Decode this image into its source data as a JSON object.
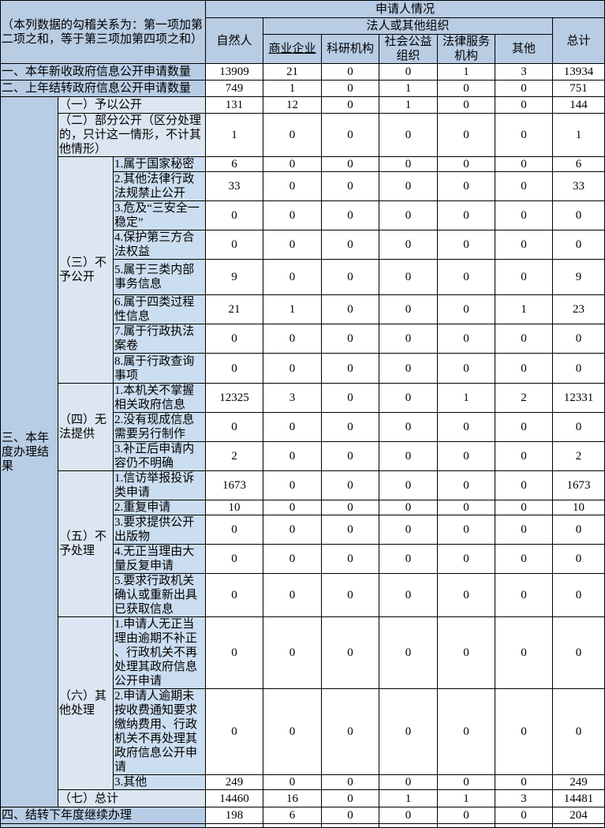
{
  "table": {
    "note": "（本列数据的勾稽关系为：第一项加第二项之和，等于第三项加第四项之和）",
    "header": {
      "applicant": "申请人情况",
      "natural_person": "自然人",
      "legal_group": "法人或其他组织",
      "legal_cols": [
        "商业企业",
        "科研机构",
        "社会公益组织",
        "法律服务机构",
        "其他"
      ],
      "total": "总计"
    },
    "colors": {
      "header_bg": "#b8cce4",
      "level1_bg": "#b7cce5",
      "level2_bg": "#dce6f2",
      "level3_bg": "#cbddf0",
      "border": "#000000"
    },
    "rows": [
      {
        "level": 1,
        "h": 21,
        "label": "一、本年新收政府信息公开申请数量",
        "values": [
          "13909",
          "21",
          "0",
          "0",
          "1",
          "3",
          "13934"
        ]
      },
      {
        "level": 1,
        "h": 21,
        "label": "二、上年结转政府信息公开申请数量",
        "values": [
          "749",
          "1",
          "0",
          "1",
          "0",
          "0",
          "751"
        ]
      },
      {
        "level": 2,
        "h": 21,
        "label": "（一）予以公开",
        "values": [
          "131",
          "12",
          "0",
          "1",
          "0",
          "0",
          "144"
        ],
        "a": {
          "label": "三、本年度办理结果",
          "span": 22
        }
      },
      {
        "level": 2,
        "h": 54,
        "label": "（二）部分公开（区分处理的，只计这一情形，不计其他情形）",
        "values": [
          "1",
          "0",
          "0",
          "0",
          "0",
          "0",
          "1"
        ]
      },
      {
        "level": 3,
        "h": 19,
        "label": "1.属于国家秘密",
        "values": [
          "6",
          "0",
          "0",
          "0",
          "0",
          "0",
          "6"
        ],
        "b": {
          "label": "（三）不予公开",
          "span": 8
        }
      },
      {
        "level": 3,
        "h": 37,
        "label": "2.其他法律行政法规禁止公开",
        "values": [
          "33",
          "0",
          "0",
          "0",
          "0",
          "0",
          "33"
        ]
      },
      {
        "level": 3,
        "h": 33,
        "label": "3.危及“三安全一稳定”",
        "values": [
          "0",
          "0",
          "0",
          "0",
          "0",
          "0",
          "0"
        ]
      },
      {
        "level": 3,
        "h": 37,
        "label": "4.保护第三方合法权益",
        "values": [
          "0",
          "0",
          "0",
          "0",
          "0",
          "0",
          "0"
        ]
      },
      {
        "level": 3,
        "h": 45,
        "label": "5.属于三类内部事务信息",
        "values": [
          "9",
          "0",
          "0",
          "0",
          "0",
          "0",
          "9"
        ]
      },
      {
        "level": 3,
        "h": 37,
        "label": "6.属于四类过程性信息",
        "values": [
          "21",
          "1",
          "0",
          "0",
          "0",
          "1",
          "23"
        ]
      },
      {
        "level": 3,
        "h": 37,
        "label": "7.属于行政执法案卷",
        "values": [
          "0",
          "0",
          "0",
          "0",
          "0",
          "0",
          "0"
        ]
      },
      {
        "level": 3,
        "h": 38,
        "label": "8.属于行政查询事项",
        "values": [
          "0",
          "0",
          "0",
          "0",
          "0",
          "0",
          "0"
        ]
      },
      {
        "level": 3,
        "h": 35,
        "label": "1.本机关不掌握相关政府信息",
        "values": [
          "12325",
          "3",
          "0",
          "0",
          "1",
          "2",
          "12331"
        ],
        "b": {
          "label": "（四）无法提供",
          "span": 3
        }
      },
      {
        "level": 3,
        "h": 35,
        "label": "2.没有现成信息需要另行制作",
        "values": [
          "0",
          "0",
          "0",
          "0",
          "0",
          "0",
          "0"
        ]
      },
      {
        "level": 3,
        "h": 36,
        "label": "3.补正后申请内容仍不明确",
        "values": [
          "2",
          "0",
          "0",
          "0",
          "0",
          "0",
          "2"
        ]
      },
      {
        "level": 3,
        "h": 37,
        "label": "1.信访举报投诉类申请",
        "values": [
          "1673",
          "0",
          "0",
          "0",
          "0",
          "0",
          "1673"
        ],
        "b": {
          "label": "（五）不予处理",
          "span": 5
        }
      },
      {
        "level": 3,
        "h": 18,
        "label": "2.重复申请",
        "values": [
          "10",
          "0",
          "0",
          "0",
          "0",
          "0",
          "10"
        ]
      },
      {
        "level": 3,
        "h": 37,
        "label": "3.要求提供公开出版物",
        "values": [
          "0",
          "0",
          "0",
          "0",
          "0",
          "0",
          "0"
        ]
      },
      {
        "level": 3,
        "h": 35,
        "label": "4.无正当理由大量反复申请",
        "values": [
          "0",
          "0",
          "0",
          "0",
          "0",
          "0",
          "0"
        ]
      },
      {
        "level": 3,
        "h": 53,
        "label": "5.要求行政机关确认或重新出具已获取信息",
        "values": [
          "0",
          "0",
          "0",
          "0",
          "0",
          "0",
          "0"
        ]
      },
      {
        "level": 3,
        "h": 90,
        "label": "1.申请人无正当理由逾期不补正、行政机关不再处理其政府信息公开申请",
        "values": [
          "0",
          "0",
          "0",
          "0",
          "0",
          "0",
          "0"
        ],
        "b": {
          "label": "（六）其他处理",
          "span": 3
        }
      },
      {
        "level": 3,
        "h": 108,
        "label": "2.申请人逾期未按收费通知要求缴纳费用、行政机关不再处理其政府信息公开申请",
        "values": [
          "0",
          "0",
          "0",
          "0",
          "0",
          "0",
          "0"
        ]
      },
      {
        "level": 3,
        "h": 19,
        "label": "3.其他",
        "values": [
          "249",
          "0",
          "0",
          "0",
          "0",
          "0",
          "249"
        ]
      },
      {
        "level": 2,
        "h": 22,
        "label": "（七）总计",
        "values": [
          "14460",
          "16",
          "0",
          "1",
          "1",
          "3",
          "14481"
        ]
      },
      {
        "level": 1,
        "h": 21,
        "label": "四、结转下年度继续办理",
        "values": [
          "198",
          "6",
          "0",
          "0",
          "0",
          "0",
          "204"
        ]
      },
      {
        "level": 1,
        "h": 5,
        "label": "",
        "values": [
          "",
          "",
          "",
          "",
          "",
          "",
          ""
        ],
        "partial": true
      }
    ]
  }
}
